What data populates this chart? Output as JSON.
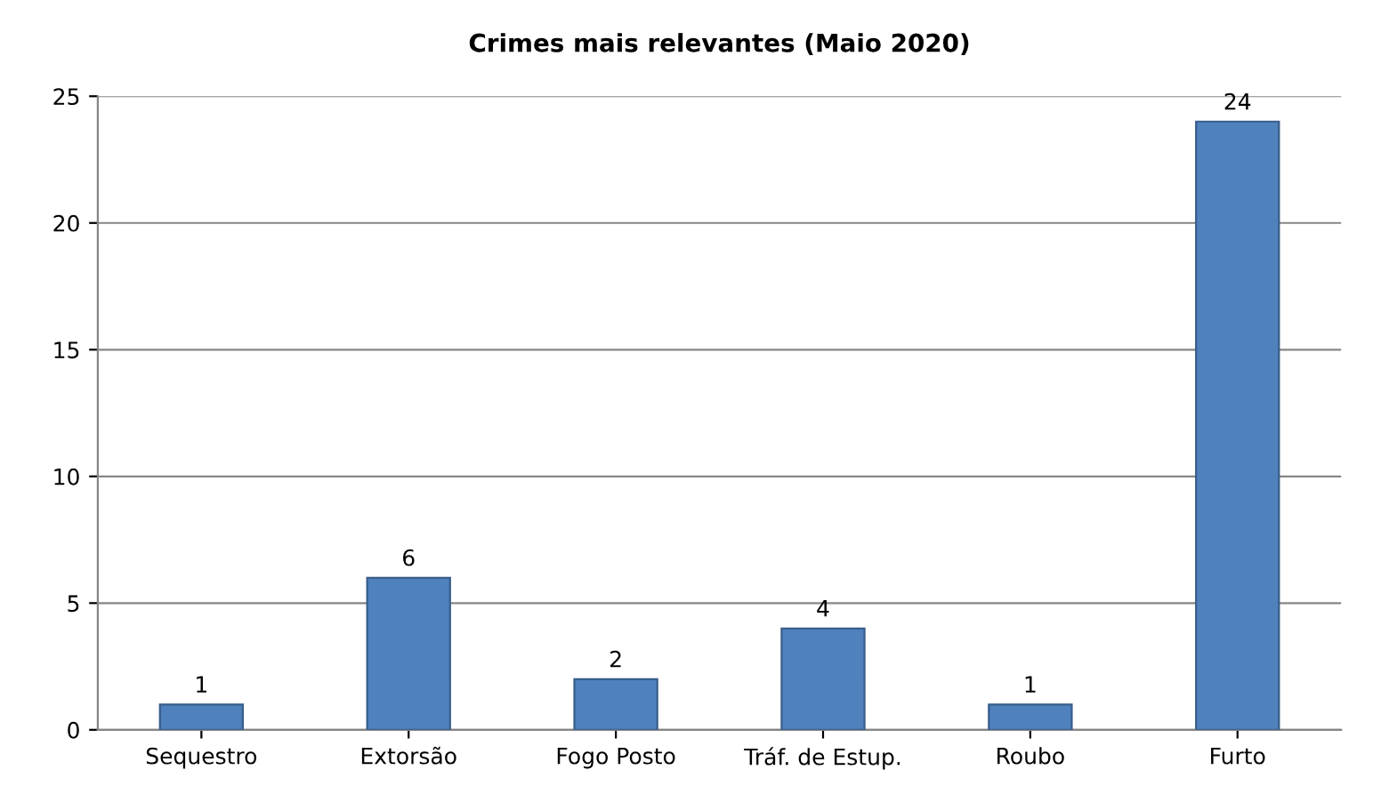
{
  "chart_data": {
    "type": "bar",
    "title": "Crimes mais relevantes (Maio 2020)",
    "categories": [
      "Sequestro",
      "Extorsão",
      "Fogo Posto",
      "Tráf. de Estup.",
      "Roubo",
      "Furto"
    ],
    "values": [
      1,
      6,
      2,
      4,
      1,
      24
    ],
    "color": "#4f81bd",
    "ylim": [
      0,
      25
    ],
    "yticks": [
      0,
      5,
      10,
      15,
      20,
      25
    ],
    "grid": "y",
    "data_labels": true
  }
}
